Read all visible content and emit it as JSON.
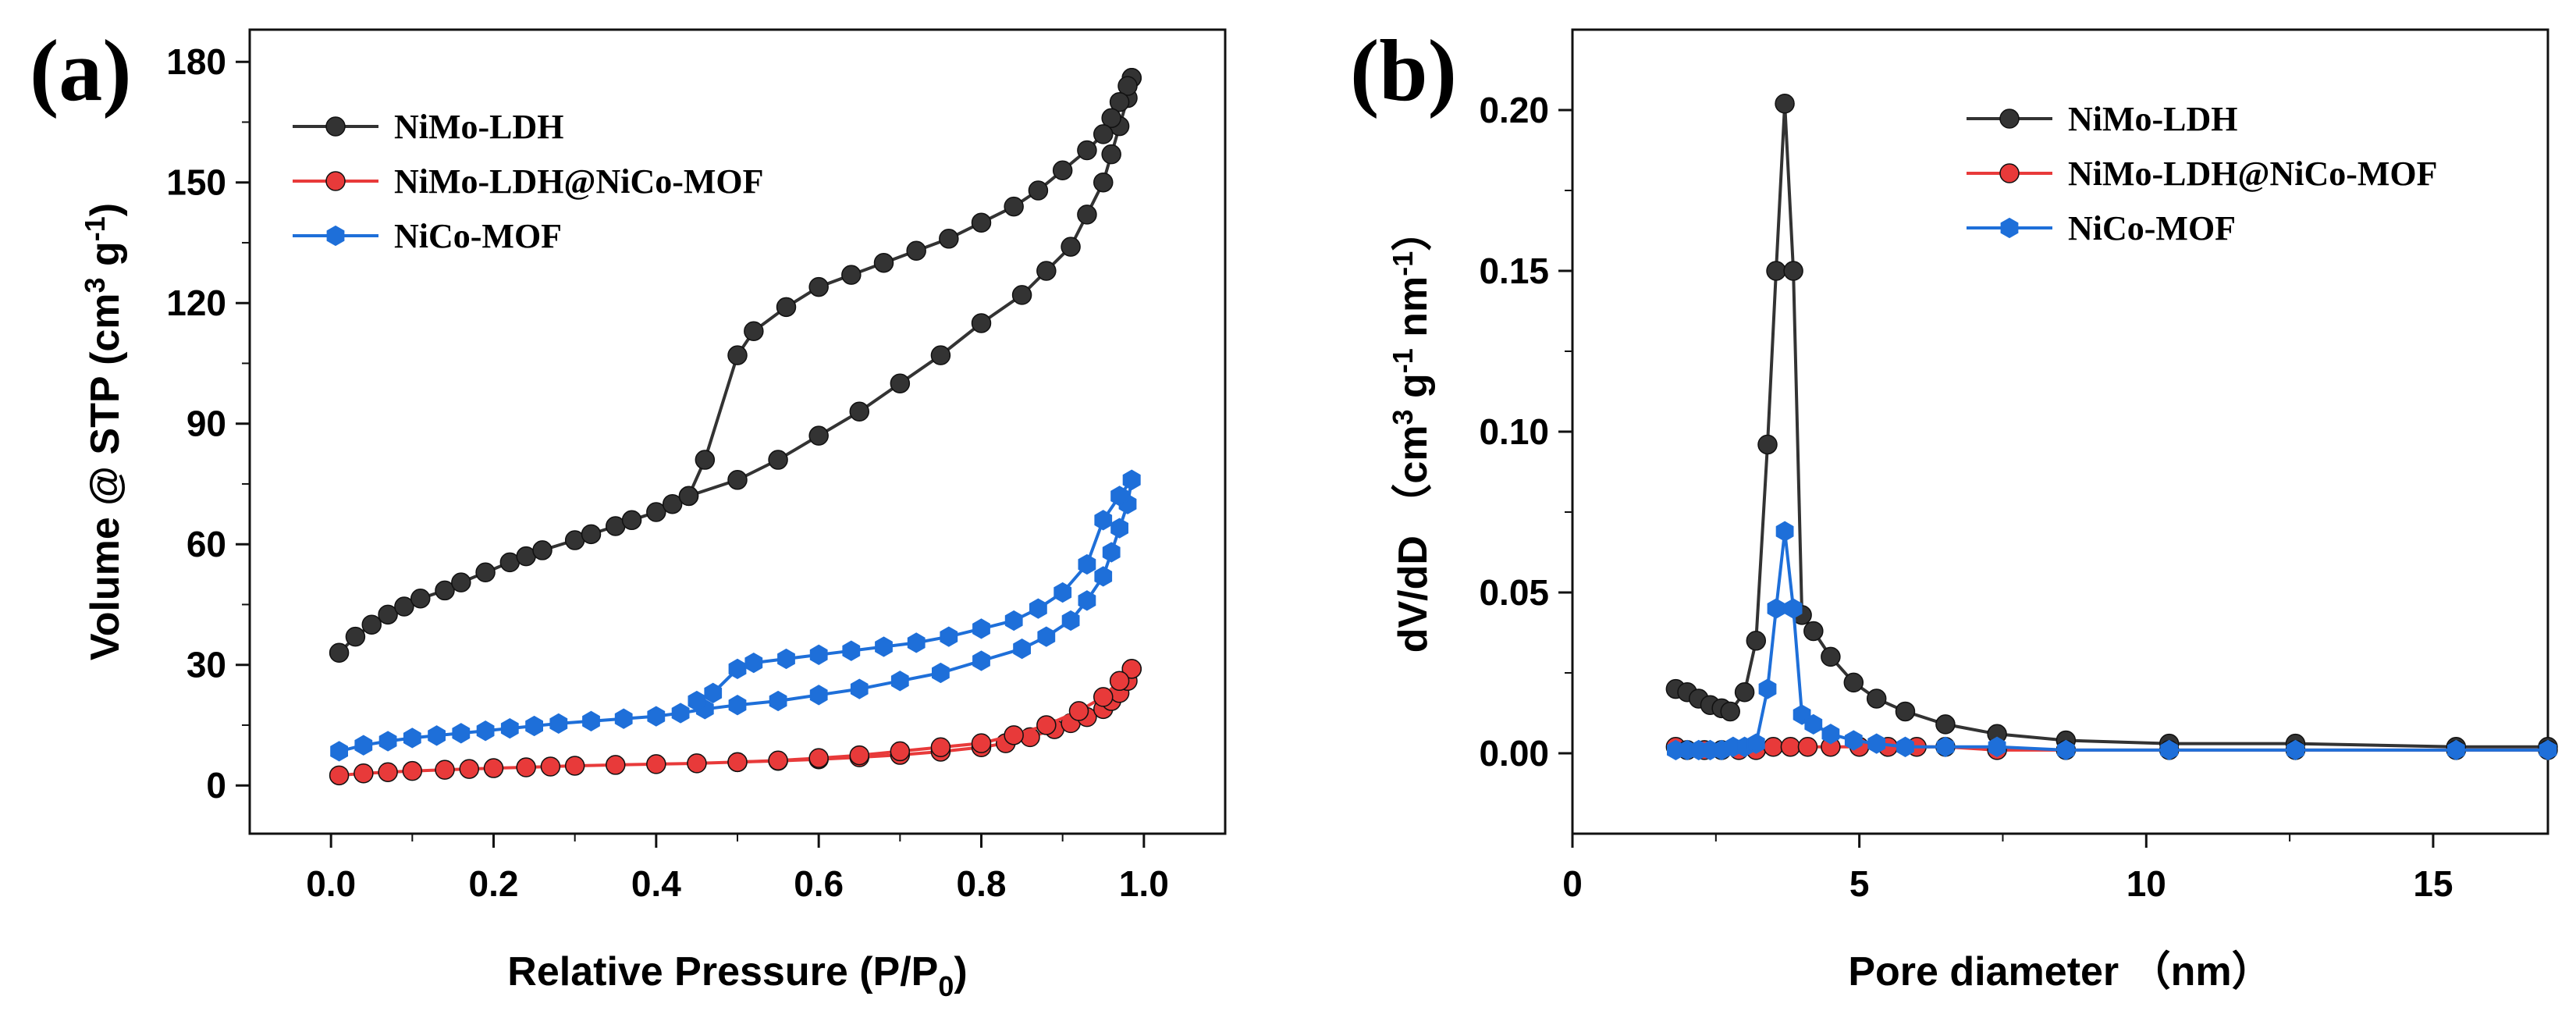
{
  "chart_data": [
    {
      "panel": "(a)",
      "type": "line",
      "xlabel_main": "Relative Pressure (P/P",
      "xlabel_sub": "0",
      "xlabel_end": ")",
      "ylabel_main": "Volume @ STP (cm",
      "ylabel_sup1": "3",
      "ylabel_mid": " g",
      "ylabel_sup2": "-1",
      "ylabel_end": ")",
      "xlim": [
        -0.1,
        1.1
      ],
      "ylim": [
        -12,
        188
      ],
      "xticks": [
        "0.0",
        "0.2",
        "0.4",
        "0.6",
        "0.8",
        "1.0"
      ],
      "yticks": [
        "0",
        "30",
        "60",
        "90",
        "120",
        "150",
        "180"
      ],
      "legend_position": "top-left",
      "series": [
        {
          "name": "NiMo-LDH",
          "color": "#333333",
          "marker": "circle",
          "adsorption": {
            "x": [
              0.01,
              0.03,
              0.05,
              0.07,
              0.09,
              0.11,
              0.14,
              0.16,
              0.19,
              0.22,
              0.24,
              0.26,
              0.3,
              0.32,
              0.35,
              0.37,
              0.4,
              0.42,
              0.44,
              0.5,
              0.55,
              0.6,
              0.65,
              0.7,
              0.75,
              0.8,
              0.85,
              0.88,
              0.91,
              0.93,
              0.95,
              0.96,
              0.97,
              0.98,
              0.985
            ],
            "y": [
              33,
              37,
              40,
              42.5,
              44.5,
              46.5,
              48.5,
              50.5,
              53,
              55.5,
              57,
              58.5,
              61,
              62.5,
              64.5,
              66,
              68,
              70,
              72,
              76,
              81,
              87,
              93,
              100,
              107,
              115,
              122,
              128,
              134,
              142,
              150,
              157,
              164,
              171,
              176
            ]
          },
          "desorption": {
            "x": [
              0.985,
              0.98,
              0.97,
              0.96,
              0.95,
              0.93,
              0.9,
              0.87,
              0.84,
              0.8,
              0.76,
              0.72,
              0.68,
              0.64,
              0.6,
              0.56,
              0.52,
              0.5,
              0.46,
              0.44
            ],
            "y": [
              176,
              174,
              170,
              166,
              162,
              158,
              153,
              148,
              144,
              140,
              136,
              133,
              130,
              127,
              124,
              119,
              113,
              107,
              81,
              72
            ]
          }
        },
        {
          "name": "NiMo-LDH@NiCo-MOF",
          "color": "#e83a3a",
          "marker": "circle",
          "adsorption": {
            "x": [
              0.01,
              0.04,
              0.07,
              0.1,
              0.14,
              0.17,
              0.2,
              0.24,
              0.27,
              0.3,
              0.35,
              0.4,
              0.45,
              0.5,
              0.55,
              0.6,
              0.65,
              0.7,
              0.75,
              0.8,
              0.83,
              0.86,
              0.89,
              0.91,
              0.93,
              0.95,
              0.96,
              0.97,
              0.98,
              0.985
            ],
            "y": [
              2.5,
              3,
              3.3,
              3.6,
              3.9,
              4.1,
              4.3,
              4.5,
              4.7,
              4.9,
              5.1,
              5.3,
              5.5,
              5.8,
              6.1,
              6.5,
              7.0,
              7.6,
              8.4,
              9.5,
              10.5,
              12,
              14,
              15.5,
              17,
              19,
              21,
              23,
              26,
              29
            ]
          },
          "desorption": {
            "x": [
              0.985,
              0.97,
              0.95,
              0.92,
              0.88,
              0.84,
              0.8,
              0.75,
              0.7,
              0.65,
              0.6,
              0.55,
              0.5
            ],
            "y": [
              29,
              26,
              22,
              18.5,
              15,
              12.5,
              10.5,
              9.5,
              8.5,
              7.5,
              6.8,
              6.2,
              5.8
            ]
          }
        },
        {
          "name": "NiCo-MOF",
          "color": "#1e6fd9",
          "marker": "hexagon",
          "adsorption": {
            "x": [
              0.01,
              0.04,
              0.07,
              0.1,
              0.13,
              0.16,
              0.19,
              0.22,
              0.25,
              0.28,
              0.32,
              0.36,
              0.4,
              0.43,
              0.46,
              0.5,
              0.55,
              0.6,
              0.65,
              0.7,
              0.75,
              0.8,
              0.85,
              0.88,
              0.91,
              0.93,
              0.95,
              0.96,
              0.97,
              0.98,
              0.985
            ],
            "y": [
              8.5,
              10,
              11,
              11.8,
              12.4,
              13,
              13.6,
              14.2,
              14.8,
              15.4,
              16,
              16.6,
              17.2,
              18,
              19,
              20,
              21,
              22.5,
              24,
              26,
              28,
              31,
              34,
              37,
              41,
              46,
              52,
              58,
              64,
              70,
              76
            ]
          },
          "desorption": {
            "x": [
              0.985,
              0.97,
              0.95,
              0.93,
              0.9,
              0.87,
              0.84,
              0.8,
              0.76,
              0.72,
              0.68,
              0.64,
              0.6,
              0.56,
              0.52,
              0.5,
              0.47,
              0.45
            ],
            "y": [
              76,
              72,
              66,
              55,
              48,
              44,
              41,
              39,
              37,
              35.5,
              34.5,
              33.5,
              32.5,
              31.5,
              30.5,
              29,
              23,
              21
            ]
          }
        }
      ]
    },
    {
      "panel": "(b)",
      "type": "line",
      "xlabel": "Pore diameter （nm）",
      "ylabel_main": "dV/dD （cm",
      "ylabel_sup1": "3",
      "ylabel_mid": " g",
      "ylabel_sup2": "-1",
      "ylabel_mid2": " nm",
      "ylabel_sup3": "-1",
      "ylabel_end": "）",
      "xlim": [
        0,
        17
      ],
      "ylim": [
        -0.025,
        0.225
      ],
      "xticks": [
        "0",
        "5",
        "10",
        "15"
      ],
      "yticks": [
        "0.00",
        "0.05",
        "0.10",
        "0.15",
        "0.20"
      ],
      "legend_position": "top-right",
      "series": [
        {
          "name": "NiMo-LDH",
          "color": "#333333",
          "marker": "circle",
          "x": [
            1.8,
            2.0,
            2.2,
            2.4,
            2.6,
            2.75,
            3.0,
            3.2,
            3.4,
            3.55,
            3.7,
            3.85,
            4.0,
            4.2,
            4.5,
            4.9,
            5.3,
            5.8,
            6.5,
            7.4,
            8.6,
            10.4,
            12.6,
            15.4,
            17.0
          ],
          "y": [
            0.02,
            0.019,
            0.017,
            0.015,
            0.014,
            0.013,
            0.019,
            0.035,
            0.096,
            0.15,
            0.202,
            0.15,
            0.043,
            0.038,
            0.03,
            0.022,
            0.017,
            0.013,
            0.009,
            0.006,
            0.004,
            0.003,
            0.003,
            0.002,
            0.002
          ]
        },
        {
          "name": "NiMo-LDH@NiCo-MOF",
          "color": "#e83a3a",
          "marker": "circle",
          "x": [
            1.8,
            2.0,
            2.3,
            2.6,
            2.9,
            3.2,
            3.5,
            3.8,
            4.1,
            4.5,
            5.0,
            5.5,
            6.0,
            6.5,
            7.4,
            8.6,
            10.4,
            12.6,
            15.4,
            17.0
          ],
          "y": [
            0.002,
            0.001,
            0.001,
            0.001,
            0.001,
            0.001,
            0.002,
            0.002,
            0.002,
            0.002,
            0.002,
            0.002,
            0.002,
            0.002,
            0.001,
            0.001,
            0.001,
            0.001,
            0.001,
            0.001
          ]
        },
        {
          "name": "NiCo-MOF",
          "color": "#1e6fd9",
          "marker": "hexagon",
          "x": [
            1.8,
            2.0,
            2.2,
            2.4,
            2.6,
            2.8,
            3.0,
            3.2,
            3.4,
            3.55,
            3.7,
            3.85,
            4.0,
            4.2,
            4.5,
            4.9,
            5.3,
            5.8,
            6.5,
            7.4,
            8.6,
            10.4,
            12.6,
            15.4,
            17.0
          ],
          "y": [
            0.001,
            0.001,
            0.001,
            0.001,
            0.001,
            0.002,
            0.002,
            0.003,
            0.02,
            0.045,
            0.069,
            0.045,
            0.012,
            0.009,
            0.006,
            0.004,
            0.003,
            0.002,
            0.002,
            0.002,
            0.001,
            0.001,
            0.001,
            0.001,
            0.001
          ]
        }
      ]
    }
  ]
}
